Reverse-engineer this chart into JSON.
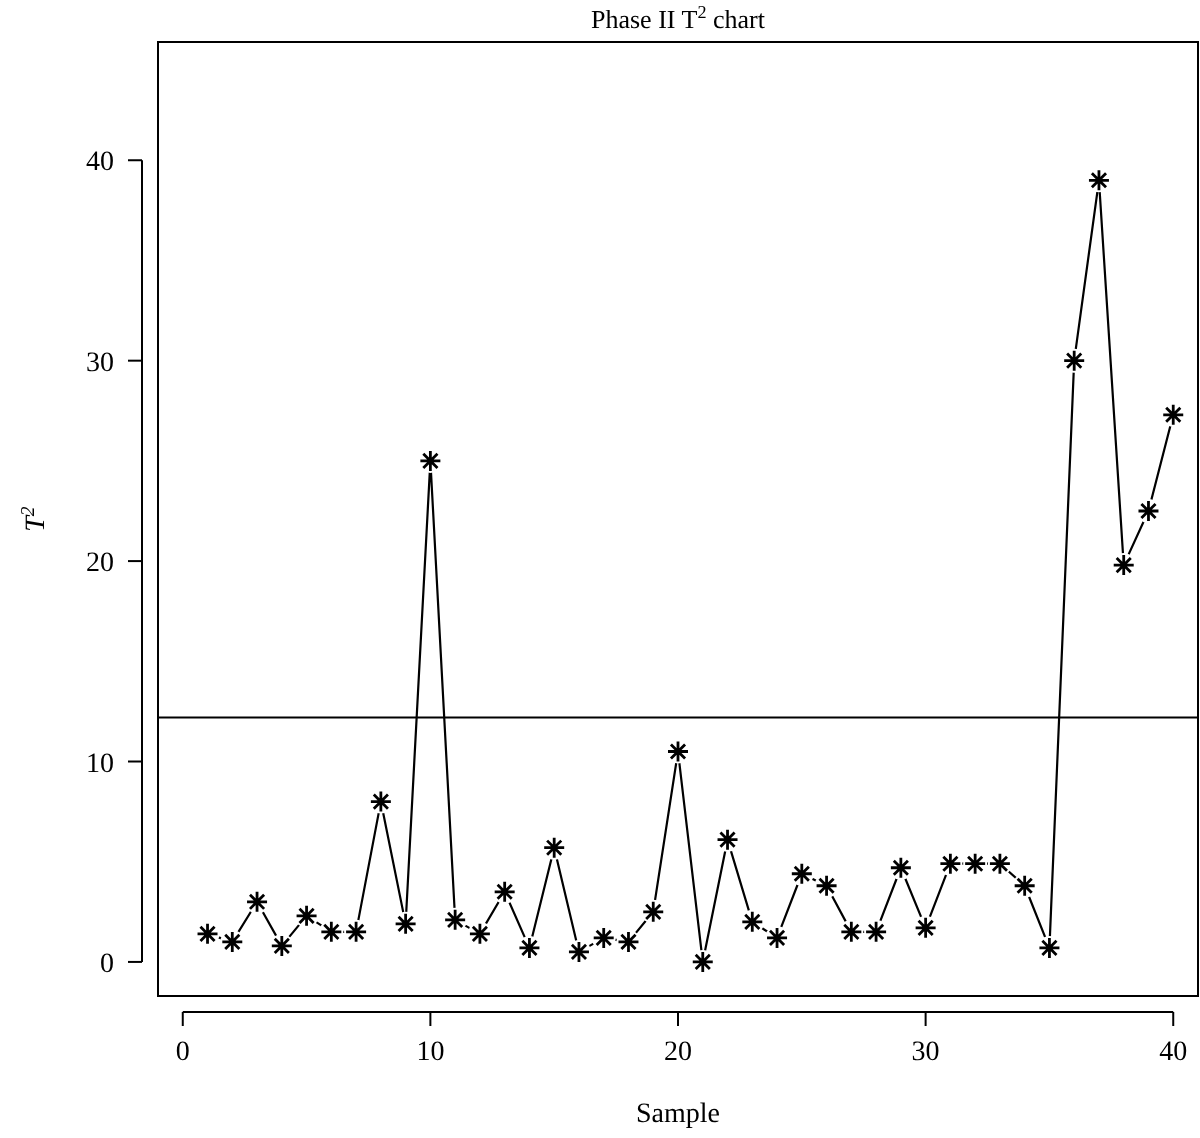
{
  "chart_data": {
    "type": "line",
    "title": "Phase II T$^{2}$ chart",
    "xlabel": "Sample",
    "ylabel": "T$^{2}$",
    "x": [
      1,
      2,
      3,
      4,
      5,
      6,
      7,
      8,
      9,
      10,
      11,
      12,
      13,
      14,
      15,
      16,
      17,
      18,
      19,
      20,
      21,
      22,
      23,
      24,
      25,
      26,
      27,
      28,
      29,
      30,
      31,
      32,
      33,
      34,
      35,
      36,
      37,
      38,
      39,
      40
    ],
    "series": [
      {
        "color": "#000000",
        "values": [
          1.4,
          1.0,
          3.0,
          0.8,
          2.3,
          1.5,
          1.5,
          8.0,
          1.9,
          25.0,
          2.1,
          1.4,
          3.5,
          0.7,
          5.7,
          0.5,
          1.2,
          1.0,
          2.5,
          10.5,
          0.0,
          6.1,
          2.0,
          1.2,
          4.4,
          3.8,
          1.5,
          1.5,
          4.7,
          1.7,
          4.9,
          4.9,
          4.9,
          3.8,
          0.7,
          30.0,
          39.0,
          19.8,
          22.5,
          27.3
        ]
      }
    ],
    "xlim": [
      -1,
      41
    ],
    "ylim": [
      -1.7,
      45.9
    ],
    "xticks": [
      0,
      10,
      20,
      30,
      40
    ],
    "yticks": [
      0,
      10,
      20,
      30,
      40
    ],
    "ref_lines": [
      {
        "axis": "y",
        "value": 12.2,
        "color": "#000000"
      }
    ],
    "marker": "cross",
    "line_style": "solid"
  }
}
